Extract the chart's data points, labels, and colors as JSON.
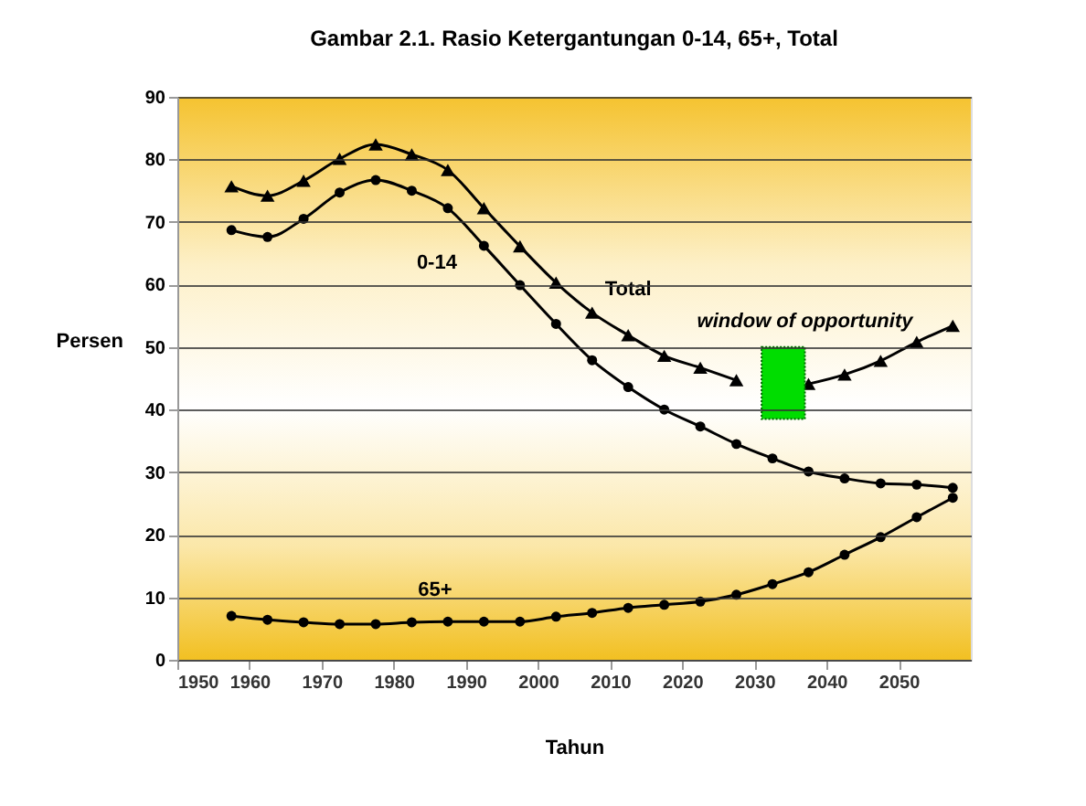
{
  "chart_data": {
    "type": "line",
    "title": "Gambar 2.1.   Rasio Ketergantungan 0-14, 65+, Total",
    "xlabel": "Tahun",
    "ylabel": "Persen",
    "x": [
      1957.5,
      1962.5,
      1967.5,
      1972.5,
      1977.5,
      1982.5,
      1987.5,
      1992.5,
      1997.5,
      2002.5,
      2007.5,
      2012.5,
      2017.5,
      2022.5,
      2027.5,
      2032.5,
      2037.5,
      2042.5,
      2047.5,
      2052.5,
      2057.5
    ],
    "series": [
      {
        "name": "Total",
        "color": "#000000",
        "marker": "triangle",
        "values": [
          75.7,
          74.2,
          76.6,
          80.1,
          82.4,
          80.8,
          78.3,
          72.2,
          66.1,
          60.3,
          55.5,
          51.9,
          48.6,
          46.7,
          44.7,
          null,
          44.1,
          45.6,
          47.8,
          50.8,
          53.4
        ]
      },
      {
        "name": "0-14",
        "color": "#000000",
        "marker": "circle",
        "values": [
          68.7,
          67.6,
          70.5,
          74.7,
          76.7,
          75.0,
          72.2,
          66.2,
          59.9,
          53.7,
          47.9,
          43.6,
          40.0,
          37.3,
          34.5,
          32.2,
          30.1,
          29.0,
          28.2,
          28.0,
          27.5
        ]
      },
      {
        "name": "65+",
        "color": "#000000",
        "marker": "circle",
        "values": [
          7.0,
          6.4,
          6.0,
          5.7,
          5.7,
          6.0,
          6.1,
          6.1,
          6.1,
          6.9,
          7.5,
          8.3,
          8.8,
          9.3,
          10.4,
          12.1,
          14.0,
          16.8,
          19.6,
          22.8,
          25.9
        ]
      }
    ],
    "bands": [
      {
        "axis": "x",
        "from": 2031,
        "to": 2037,
        "label": "window of opportunity",
        "color": "#00dd00"
      }
    ],
    "xlim": [
      1950,
      2060
    ],
    "xticks": [
      1950,
      1960,
      1970,
      1980,
      1990,
      2000,
      2010,
      2020,
      2030,
      2040,
      2050
    ],
    "ylim": [
      0,
      90
    ],
    "yticks": [
      0,
      10,
      20,
      30,
      40,
      50,
      60,
      70,
      80,
      90
    ],
    "grid": "y"
  }
}
